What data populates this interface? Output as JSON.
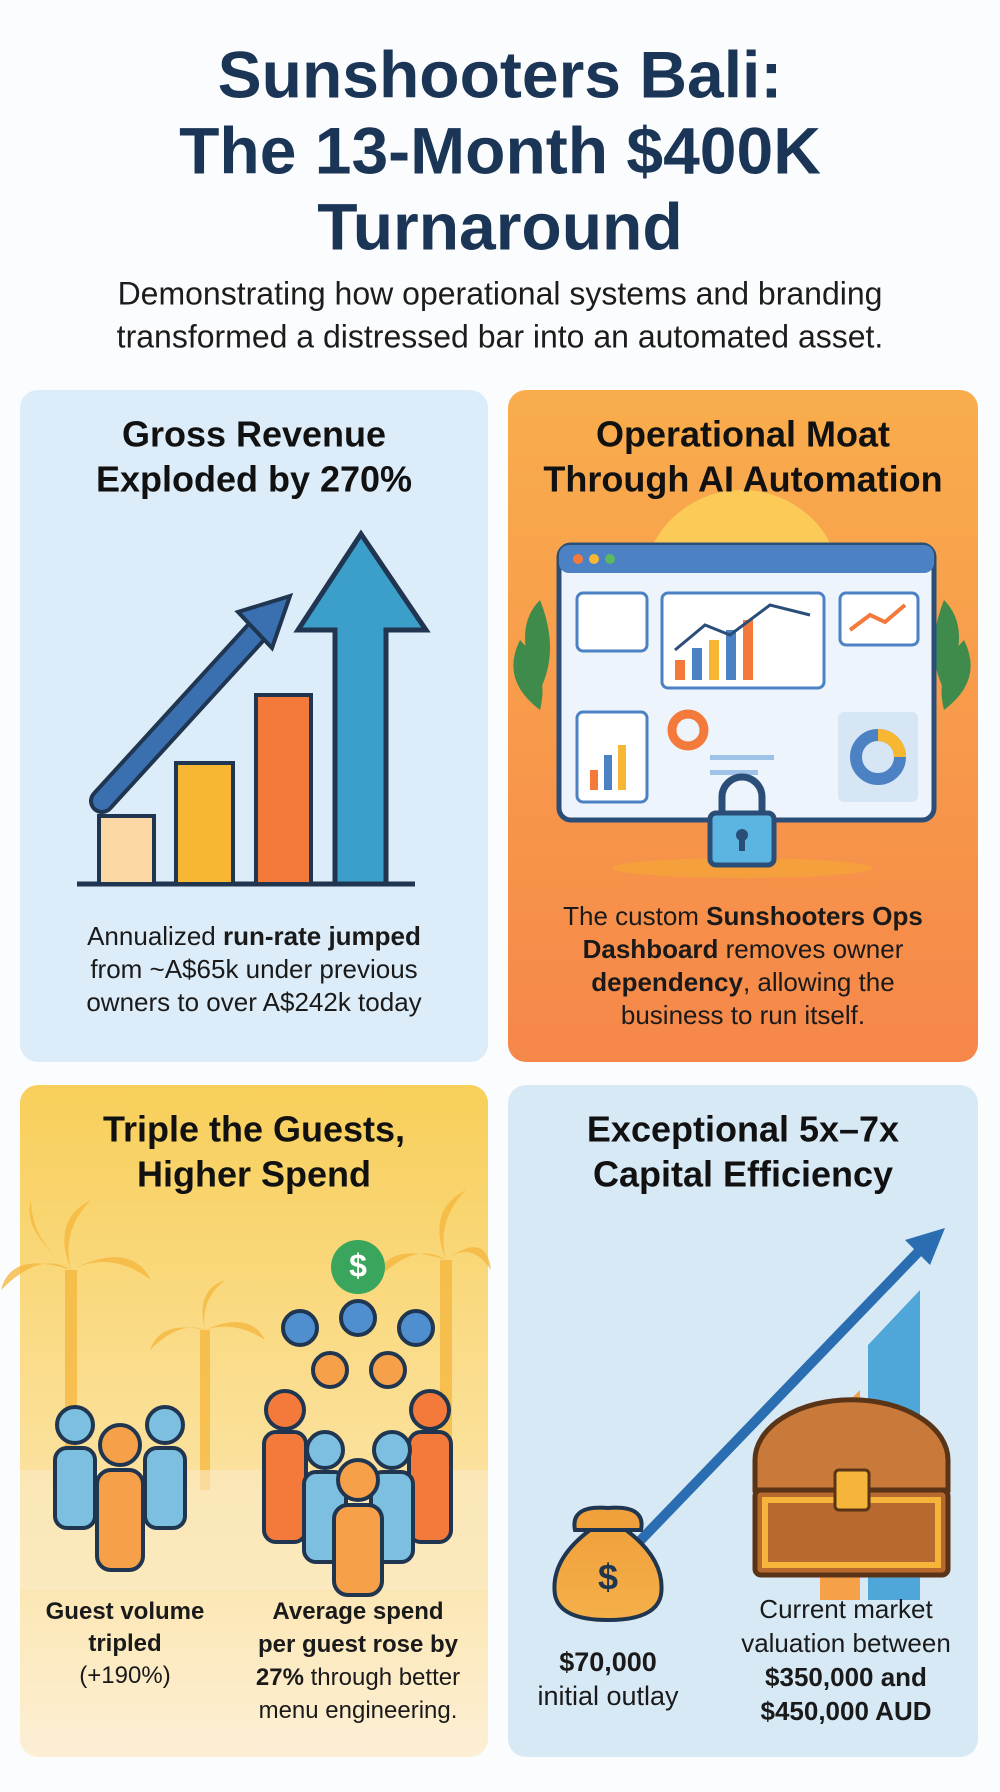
{
  "title": [
    "Sunshooters Bali:",
    "The 13-Month $400K",
    "Turnaround"
  ],
  "subtitle": [
    "Demonstrating how operational systems and branding",
    "transformed a distressed bar into an automated asset."
  ],
  "cards": [
    {
      "title": [
        "Gross Revenue",
        "Exploded by 270%"
      ],
      "blocks": [
        {
          "lines": [
            [
              {
                "text": "Annualized "
              },
              {
                "text": "run-rate jumped",
                "bold": true
              }
            ],
            [
              {
                "text": "from ~A$65k under previous"
              }
            ],
            [
              {
                "text": "owners to over A$242k today"
              }
            ]
          ]
        }
      ]
    },
    {
      "title": [
        "Operational Moat",
        "Through AI Automation"
      ],
      "blocks": [
        {
          "lines": [
            [
              {
                "text": "The custom "
              },
              {
                "text": "Sunshooters Ops",
                "bold": true
              }
            ],
            [
              {
                "text": "Dashboard",
                "bold": true
              },
              {
                "text": " removes owner"
              }
            ],
            [
              {
                "text": "dependency",
                "bold": true
              },
              {
                "text": ", allowing the"
              }
            ],
            [
              {
                "text": "business to run itself."
              }
            ]
          ]
        }
      ]
    },
    {
      "title": [
        "Triple the Guests,",
        "Higher Spend"
      ],
      "icon_label": "$",
      "blocks": [
        {
          "lines": [
            [
              {
                "text": "Guest volume",
                "bold": true
              }
            ],
            [
              {
                "text": "tripled",
                "bold": true
              }
            ],
            [
              {
                "text": "(+190%)"
              }
            ]
          ]
        },
        {
          "lines": [
            [
              {
                "text": "Average spend",
                "bold": true
              }
            ],
            [
              {
                "text": "per guest rose by",
                "bold": true
              }
            ],
            [
              {
                "text": "27%",
                "bold": true
              },
              {
                "text": " through better"
              }
            ],
            [
              {
                "text": "menu engineering."
              }
            ]
          ]
        }
      ]
    },
    {
      "title": [
        "Exceptional 5x–7x",
        "Capital Efficiency"
      ],
      "icon_label": "$",
      "blocks": [
        {
          "lines": [
            [
              {
                "text": "$70,000",
                "bold": true
              }
            ],
            [
              {
                "text": "initial outlay"
              }
            ]
          ]
        },
        {
          "lines": [
            [
              {
                "text": "Current market"
              }
            ],
            [
              {
                "text": "valuation between"
              }
            ],
            [
              {
                "text": "$350,000 and",
                "bold": true
              }
            ],
            [
              {
                "text": "$450,000 AUD",
                "bold": true
              }
            ]
          ]
        }
      ]
    }
  ]
}
